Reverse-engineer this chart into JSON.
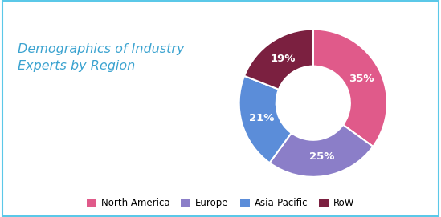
{
  "title": "Demographics of Industry\nExperts by Region",
  "title_color": "#3BA3D0",
  "title_fontsize": 11.5,
  "labels": [
    "North America",
    "Europe",
    "Asia-Pacific",
    "RoW"
  ],
  "values": [
    35,
    25,
    21,
    19
  ],
  "colors": [
    "#E05A8A",
    "#8B7EC8",
    "#5B8DD9",
    "#7B2040"
  ],
  "pct_labels": [
    "35%",
    "25%",
    "21%",
    "19%"
  ],
  "background_color": "#FFFFFF",
  "border_color": "#5BC8E8",
  "legend_fontsize": 8.5,
  "startangle": 90
}
